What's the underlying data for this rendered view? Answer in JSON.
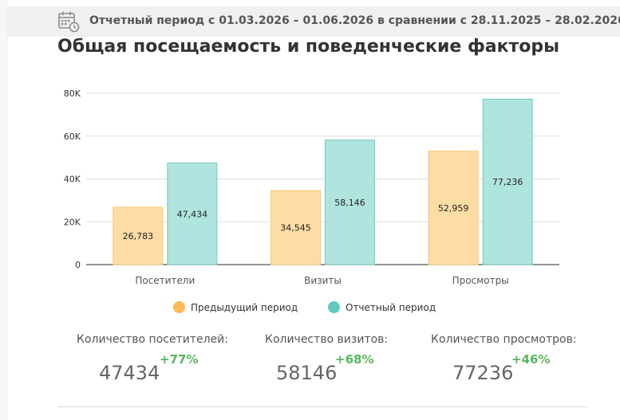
{
  "header": {
    "period_text": "Отчетный период с 01.03.2026 – 01.06.2026 в сравнении с 28.11.2025 – 28.02.2026",
    "icon": "calendar-clock-icon"
  },
  "page_title": "Общая посещаемость и поведенческие факторы",
  "chart_data": {
    "type": "bar",
    "title": "",
    "xlabel": "",
    "ylabel": "",
    "categories": [
      "Посетители",
      "Визиты",
      "Просмотры"
    ],
    "series": [
      {
        "name": "Предыдущий период",
        "values": [
          26783,
          34545,
          52959
        ],
        "labels": [
          "26,783",
          "34,545",
          "52,959"
        ],
        "color": "#fedca4",
        "stroke": "#f8c777"
      },
      {
        "name": "Отчетный период",
        "values": [
          47434,
          58146,
          77236
        ],
        "labels": [
          "47,434",
          "58,146",
          "77,236"
        ],
        "color": "#b0e4de",
        "stroke": "#75c9c1"
      }
    ],
    "ylim": [
      0,
      80000
    ],
    "yticks": [
      0,
      20000,
      40000,
      60000,
      80000
    ],
    "ytick_labels": [
      "0",
      "20K",
      "40K",
      "60K",
      "80K"
    ],
    "grid": true,
    "legend_position": "bottom"
  },
  "legend": {
    "items": [
      {
        "label": "Предыдущий период",
        "color": "#ffbb53"
      },
      {
        "label": "Отчетный период",
        "color": "#5fcac0"
      }
    ]
  },
  "stats": [
    {
      "label": "Количество посетителей:",
      "value": "47434",
      "change": "+77%"
    },
    {
      "label": "Количество визитов:",
      "value": "58146",
      "change": "+68%"
    },
    {
      "label": "Количество просмотров:",
      "value": "77236",
      "change": "+46%"
    }
  ],
  "colors": {
    "positive_change": "#58b85e",
    "header_bg": "#f0f0f0"
  }
}
